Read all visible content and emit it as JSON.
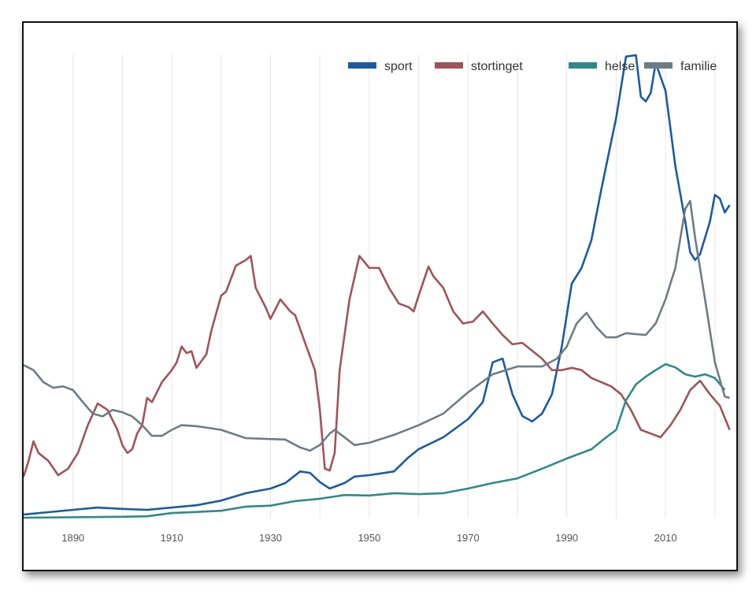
{
  "chart_data": {
    "type": "line",
    "title": "",
    "xlabel": "",
    "ylabel": "",
    "xlim": [
      1880,
      2023
    ],
    "ylim": [
      0,
      100
    ],
    "y_units": "relative (no y-axis labels shown)",
    "grid": "vertical",
    "legend_position": "top-right",
    "x_ticks": [
      1890,
      1910,
      1930,
      1950,
      1970,
      1990,
      2010
    ],
    "series": [
      {
        "name": "sport",
        "color": "#1c5aa0",
        "points": [
          [
            1880,
            0.7
          ],
          [
            1885,
            1.2
          ],
          [
            1890,
            1.7
          ],
          [
            1895,
            2.2
          ],
          [
            1900,
            1.9
          ],
          [
            1905,
            1.7
          ],
          [
            1910,
            2.2
          ],
          [
            1915,
            2.7
          ],
          [
            1920,
            3.7
          ],
          [
            1925,
            5.3
          ],
          [
            1930,
            6.3
          ],
          [
            1933,
            7.5
          ],
          [
            1936,
            10
          ],
          [
            1938,
            9.7
          ],
          [
            1940,
            7.7
          ],
          [
            1942,
            6.3
          ],
          [
            1945,
            7.5
          ],
          [
            1947,
            8.9
          ],
          [
            1950,
            9.2
          ],
          [
            1955,
            10
          ],
          [
            1958,
            13.1
          ],
          [
            1960,
            14.8
          ],
          [
            1965,
            17.4
          ],
          [
            1970,
            21.3
          ],
          [
            1973,
            25
          ],
          [
            1975,
            33.6
          ],
          [
            1977,
            34.4
          ],
          [
            1979,
            26.7
          ],
          [
            1981,
            22
          ],
          [
            1983,
            20.8
          ],
          [
            1985,
            22.5
          ],
          [
            1987,
            26.7
          ],
          [
            1989,
            37
          ],
          [
            1991,
            50.6
          ],
          [
            1993,
            54
          ],
          [
            1995,
            60
          ],
          [
            1997,
            71
          ],
          [
            1999,
            81.3
          ],
          [
            2000,
            86.4
          ],
          [
            2002,
            99.7
          ],
          [
            2004,
            100
          ],
          [
            2005,
            91
          ],
          [
            2006,
            90
          ],
          [
            2007,
            91.8
          ],
          [
            2008,
            98.3
          ],
          [
            2010,
            92.3
          ],
          [
            2012,
            76
          ],
          [
            2014,
            64
          ],
          [
            2015,
            57.4
          ],
          [
            2016,
            55.7
          ],
          [
            2017,
            57
          ],
          [
            2019,
            64
          ],
          [
            2020,
            69.8
          ],
          [
            2021,
            69
          ],
          [
            2022,
            66
          ],
          [
            2023,
            67.6
          ]
        ]
      },
      {
        "name": "stortinget",
        "color": "#a0535a",
        "points": [
          [
            1880,
            8.9
          ],
          [
            1881,
            12.3
          ],
          [
            1882,
            16.5
          ],
          [
            1883,
            14
          ],
          [
            1885,
            12.3
          ],
          [
            1887,
            9.2
          ],
          [
            1889,
            10.6
          ],
          [
            1891,
            14
          ],
          [
            1893,
            20
          ],
          [
            1895,
            24.7
          ],
          [
            1897,
            23.3
          ],
          [
            1899,
            19
          ],
          [
            1900,
            15.7
          ],
          [
            1901,
            14
          ],
          [
            1902,
            14.8
          ],
          [
            1903,
            18.2
          ],
          [
            1904,
            20
          ],
          [
            1905,
            25.9
          ],
          [
            1906,
            25
          ],
          [
            1908,
            29.3
          ],
          [
            1910,
            31.9
          ],
          [
            1911,
            33.6
          ],
          [
            1912,
            37
          ],
          [
            1913,
            35.6
          ],
          [
            1914,
            36
          ],
          [
            1915,
            32.4
          ],
          [
            1917,
            35.3
          ],
          [
            1918,
            40.4
          ],
          [
            1920,
            48
          ],
          [
            1921,
            48.9
          ],
          [
            1923,
            54.5
          ],
          [
            1925,
            55.7
          ],
          [
            1926,
            56.6
          ],
          [
            1927,
            49.7
          ],
          [
            1929,
            45.5
          ],
          [
            1930,
            43
          ],
          [
            1932,
            47.2
          ],
          [
            1934,
            44.6
          ],
          [
            1935,
            43.8
          ],
          [
            1937,
            37.8
          ],
          [
            1939,
            31.9
          ],
          [
            1940,
            23.3
          ],
          [
            1941,
            10.6
          ],
          [
            1942,
            10.2
          ],
          [
            1943,
            14
          ],
          [
            1944,
            31.9
          ],
          [
            1946,
            47.2
          ],
          [
            1948,
            56.6
          ],
          [
            1950,
            54
          ],
          [
            1952,
            54
          ],
          [
            1954,
            49.7
          ],
          [
            1956,
            46.3
          ],
          [
            1958,
            45.5
          ],
          [
            1959,
            44.6
          ],
          [
            1960,
            48
          ],
          [
            1962,
            54.3
          ],
          [
            1963,
            52.2
          ],
          [
            1965,
            49.7
          ],
          [
            1967,
            44.6
          ],
          [
            1969,
            42
          ],
          [
            1971,
            42.4
          ],
          [
            1973,
            44.6
          ],
          [
            1975,
            42
          ],
          [
            1977,
            39.5
          ],
          [
            1979,
            37.5
          ],
          [
            1981,
            37.8
          ],
          [
            1983,
            36.1
          ],
          [
            1985,
            34.4
          ],
          [
            1987,
            31.9
          ],
          [
            1989,
            31.9
          ],
          [
            1991,
            32.4
          ],
          [
            1993,
            31.9
          ],
          [
            1995,
            30.2
          ],
          [
            1997,
            29.3
          ],
          [
            1999,
            28.4
          ],
          [
            2001,
            26.7
          ],
          [
            2003,
            23.3
          ],
          [
            2005,
            19
          ],
          [
            2007,
            18.2
          ],
          [
            2009,
            17.4
          ],
          [
            2011,
            20
          ],
          [
            2013,
            23.3
          ],
          [
            2015,
            27.6
          ],
          [
            2017,
            29.6
          ],
          [
            2019,
            26.7
          ],
          [
            2021,
            24.2
          ],
          [
            2023,
            19
          ]
        ]
      },
      {
        "name": "helse",
        "color": "#2f8a86",
        "points": [
          [
            1880,
            0
          ],
          [
            1900,
            0.2
          ],
          [
            1905,
            0.3
          ],
          [
            1910,
            1
          ],
          [
            1920,
            1.5
          ],
          [
            1925,
            2.4
          ],
          [
            1930,
            2.6
          ],
          [
            1935,
            3.6
          ],
          [
            1940,
            4.1
          ],
          [
            1945,
            4.9
          ],
          [
            1950,
            4.8
          ],
          [
            1955,
            5.3
          ],
          [
            1960,
            5.1
          ],
          [
            1965,
            5.3
          ],
          [
            1970,
            6.3
          ],
          [
            1975,
            7.5
          ],
          [
            1980,
            8.5
          ],
          [
            1985,
            10.6
          ],
          [
            1990,
            12.8
          ],
          [
            1995,
            14.8
          ],
          [
            1998,
            17.4
          ],
          [
            2000,
            19
          ],
          [
            2002,
            25.4
          ],
          [
            2004,
            28.8
          ],
          [
            2006,
            30.5
          ],
          [
            2008,
            31.9
          ],
          [
            2010,
            33.2
          ],
          [
            2012,
            32.5
          ],
          [
            2014,
            31
          ],
          [
            2016,
            30.5
          ],
          [
            2018,
            31
          ],
          [
            2020,
            30.2
          ],
          [
            2022,
            27.6
          ]
        ]
      },
      {
        "name": "familie",
        "color": "#6e7c85",
        "points": [
          [
            1880,
            33
          ],
          [
            1882,
            31.9
          ],
          [
            1884,
            29.3
          ],
          [
            1886,
            28.1
          ],
          [
            1888,
            28.4
          ],
          [
            1890,
            27.6
          ],
          [
            1892,
            25
          ],
          [
            1894,
            22.5
          ],
          [
            1896,
            21.9
          ],
          [
            1898,
            23.3
          ],
          [
            1900,
            22.8
          ],
          [
            1902,
            21.9
          ],
          [
            1904,
            20
          ],
          [
            1906,
            17.7
          ],
          [
            1908,
            17.7
          ],
          [
            1910,
            19
          ],
          [
            1912,
            20
          ],
          [
            1915,
            19.8
          ],
          [
            1920,
            19
          ],
          [
            1925,
            17.2
          ],
          [
            1930,
            17
          ],
          [
            1933,
            16.9
          ],
          [
            1936,
            15.2
          ],
          [
            1938,
            14.5
          ],
          [
            1940,
            15.7
          ],
          [
            1942,
            18.2
          ],
          [
            1943,
            19
          ],
          [
            1945,
            17.4
          ],
          [
            1947,
            15.7
          ],
          [
            1950,
            16.2
          ],
          [
            1955,
            17.9
          ],
          [
            1960,
            20
          ],
          [
            1965,
            22.5
          ],
          [
            1970,
            27.1
          ],
          [
            1975,
            31
          ],
          [
            1980,
            32.7
          ],
          [
            1985,
            32.7
          ],
          [
            1988,
            34.4
          ],
          [
            1990,
            37
          ],
          [
            1992,
            42
          ],
          [
            1994,
            44.3
          ],
          [
            1996,
            41.2
          ],
          [
            1998,
            39
          ],
          [
            2000,
            39
          ],
          [
            2002,
            39.9
          ],
          [
            2004,
            39.7
          ],
          [
            2006,
            39.5
          ],
          [
            2008,
            42
          ],
          [
            2010,
            47.2
          ],
          [
            2012,
            54
          ],
          [
            2014,
            66.8
          ],
          [
            2015,
            68.5
          ],
          [
            2016,
            60.5
          ],
          [
            2018,
            47.2
          ],
          [
            2020,
            33.6
          ],
          [
            2022,
            26.2
          ],
          [
            2023,
            25.9
          ]
        ]
      }
    ]
  }
}
